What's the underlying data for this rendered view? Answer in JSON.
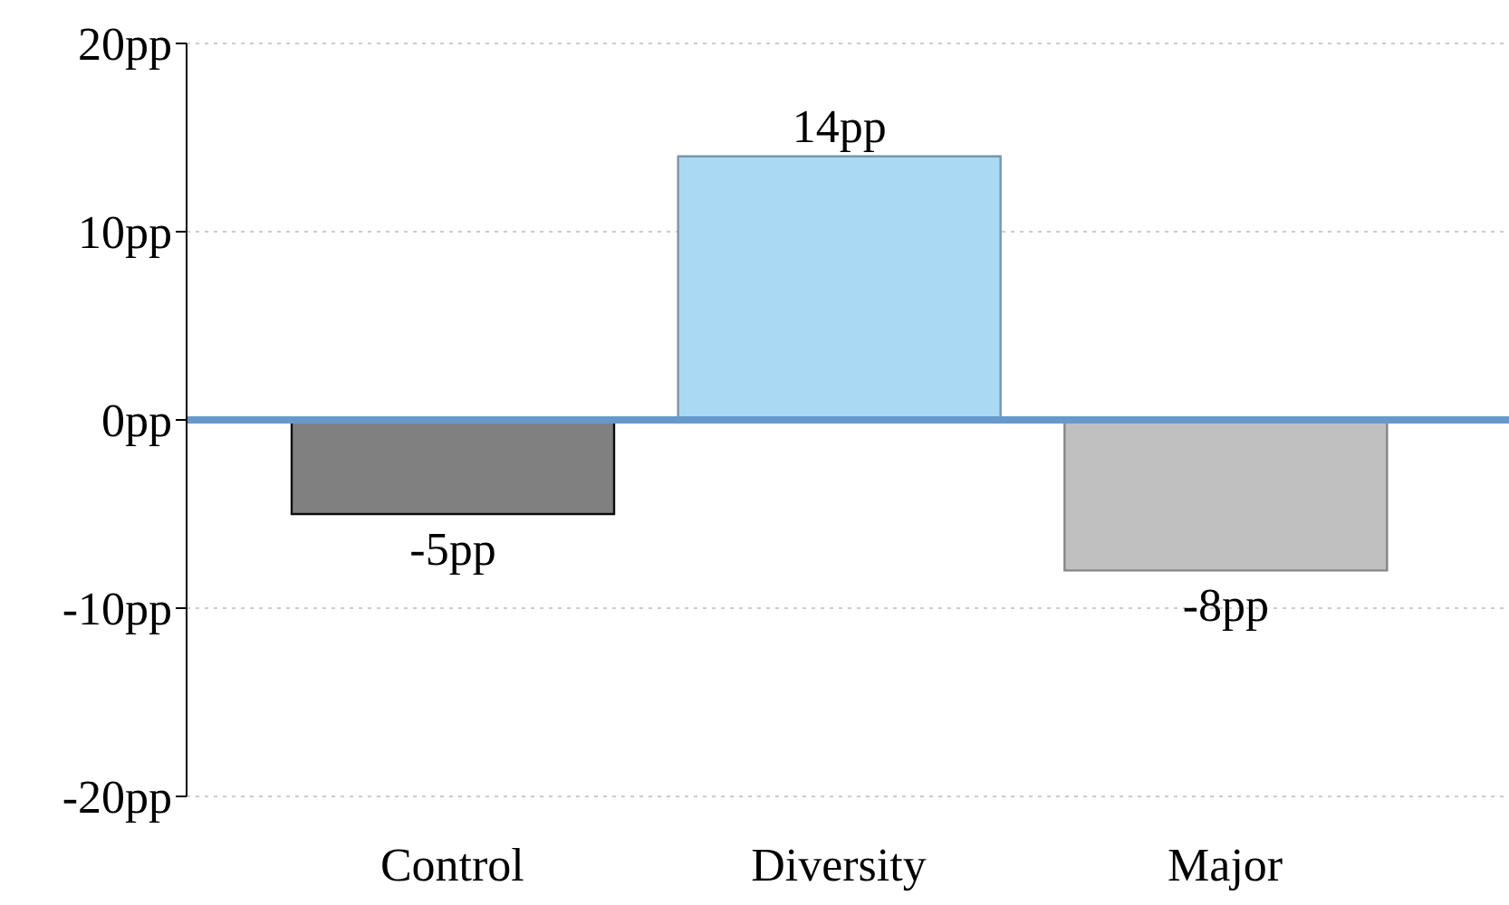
{
  "chart_data": {
    "type": "bar",
    "categories": [
      "Control",
      "Diversity",
      "Major"
    ],
    "values": [
      -5,
      14,
      -8
    ],
    "value_labels": [
      "-5pp",
      "14pp",
      "-8pp"
    ],
    "colors": [
      "#808080",
      "#aad9f3",
      "#c0c0c0"
    ],
    "ylim": [
      -20,
      20
    ],
    "yticks": [
      {
        "value": -20,
        "label": "-20pp"
      },
      {
        "value": -10,
        "label": "-10pp"
      },
      {
        "value": 0,
        "label": "0pp"
      },
      {
        "value": 10,
        "label": "10pp"
      },
      {
        "value": 20,
        "label": "20pp"
      }
    ],
    "grid": "y",
    "ref_lines": [
      {
        "axis": "y",
        "value": 0,
        "color": "#6699cc"
      }
    ]
  }
}
